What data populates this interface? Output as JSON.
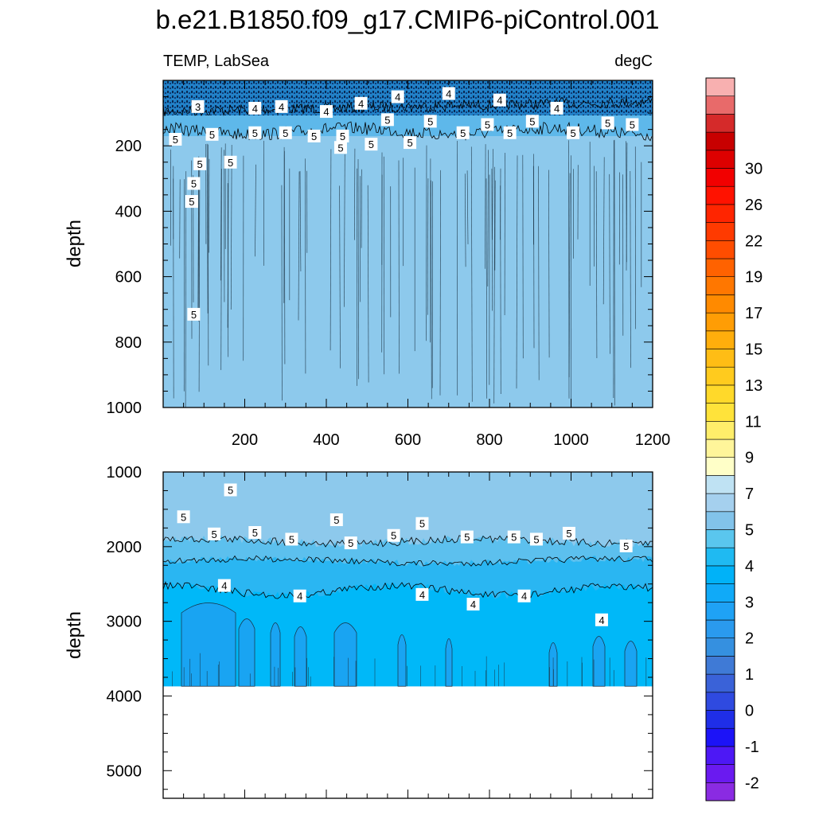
{
  "chart_data": {
    "type": "heatmap",
    "title": "b.e21.B1850.f09_g17.CMIP6-piControl.001",
    "variable_label": "TEMP, LabSea",
    "units_label": "degC",
    "panels": [
      {
        "name": "upper",
        "xlim": [
          0,
          1200
        ],
        "ylim": [
          1000,
          0
        ],
        "ylabel": "depth",
        "xticks": [
          200,
          400,
          600,
          800,
          1000,
          1200
        ],
        "yticks": [
          200,
          400,
          600,
          800,
          1000
        ],
        "contour_labels": [
          {
            "x": 85,
            "y": 80,
            "text": "3"
          },
          {
            "x": 225,
            "y": 85,
            "text": "4"
          },
          {
            "x": 290,
            "y": 80,
            "text": "4"
          },
          {
            "x": 400,
            "y": 95,
            "text": "4"
          },
          {
            "x": 485,
            "y": 70,
            "text": "4"
          },
          {
            "x": 575,
            "y": 50,
            "text": "4"
          },
          {
            "x": 700,
            "y": 40,
            "text": "4"
          },
          {
            "x": 825,
            "y": 60,
            "text": "4"
          },
          {
            "x": 965,
            "y": 85,
            "text": "4"
          },
          {
            "x": 30,
            "y": 180,
            "text": "5"
          },
          {
            "x": 120,
            "y": 165,
            "text": "5"
          },
          {
            "x": 225,
            "y": 160,
            "text": "5"
          },
          {
            "x": 300,
            "y": 160,
            "text": "5"
          },
          {
            "x": 370,
            "y": 170,
            "text": "5"
          },
          {
            "x": 440,
            "y": 170,
            "text": "5"
          },
          {
            "x": 435,
            "y": 205,
            "text": "5"
          },
          {
            "x": 510,
            "y": 195,
            "text": "5"
          },
          {
            "x": 550,
            "y": 120,
            "text": "5"
          },
          {
            "x": 605,
            "y": 190,
            "text": "5"
          },
          {
            "x": 655,
            "y": 125,
            "text": "5"
          },
          {
            "x": 735,
            "y": 160,
            "text": "5"
          },
          {
            "x": 795,
            "y": 135,
            "text": "5"
          },
          {
            "x": 850,
            "y": 160,
            "text": "5"
          },
          {
            "x": 905,
            "y": 125,
            "text": "5"
          },
          {
            "x": 1005,
            "y": 160,
            "text": "5"
          },
          {
            "x": 1090,
            "y": 130,
            "text": "5"
          },
          {
            "x": 1150,
            "y": 135,
            "text": "5"
          },
          {
            "x": 90,
            "y": 255,
            "text": "5"
          },
          {
            "x": 165,
            "y": 250,
            "text": "5"
          },
          {
            "x": 75,
            "y": 315,
            "text": "5"
          },
          {
            "x": 70,
            "y": 370,
            "text": "5"
          },
          {
            "x": 75,
            "y": 715,
            "text": "5"
          }
        ]
      },
      {
        "name": "lower",
        "xlim": [
          0,
          1200
        ],
        "ylim": [
          5370,
          1000
        ],
        "ylabel": "depth",
        "data_bottom": 3870,
        "yticks": [
          1000,
          2000,
          3000,
          4000,
          5000
        ],
        "contour_labels": [
          {
            "x": 165,
            "y": 1240,
            "text": "5"
          },
          {
            "x": 50,
            "y": 1600,
            "text": "5"
          },
          {
            "x": 125,
            "y": 1830,
            "text": "5"
          },
          {
            "x": 225,
            "y": 1810,
            "text": "5"
          },
          {
            "x": 315,
            "y": 1900,
            "text": "5"
          },
          {
            "x": 425,
            "y": 1640,
            "text": "5"
          },
          {
            "x": 460,
            "y": 1950,
            "text": "5"
          },
          {
            "x": 565,
            "y": 1850,
            "text": "5"
          },
          {
            "x": 635,
            "y": 1690,
            "text": "5"
          },
          {
            "x": 745,
            "y": 1870,
            "text": "5"
          },
          {
            "x": 860,
            "y": 1870,
            "text": "5"
          },
          {
            "x": 915,
            "y": 1900,
            "text": "5"
          },
          {
            "x": 995,
            "y": 1820,
            "text": "5"
          },
          {
            "x": 1135,
            "y": 1990,
            "text": "5"
          },
          {
            "x": 150,
            "y": 2520,
            "text": "4"
          },
          {
            "x": 335,
            "y": 2660,
            "text": "4"
          },
          {
            "x": 635,
            "y": 2640,
            "text": "4"
          },
          {
            "x": 760,
            "y": 2770,
            "text": "4"
          },
          {
            "x": 885,
            "y": 2660,
            "text": "4"
          },
          {
            "x": 1075,
            "y": 2980,
            "text": "4"
          }
        ]
      }
    ],
    "colorbar": {
      "labels": [
        "-2",
        "-1",
        "0",
        "1",
        "2",
        "3",
        "4",
        "5",
        "7",
        "9",
        "11",
        "13",
        "15",
        "17",
        "19",
        "22",
        "26",
        "30"
      ],
      "colors": [
        "#8a2be2",
        "#6a1af0",
        "#4d18f5",
        "#1c13f7",
        "#1f2ee8",
        "#2f4ae0",
        "#3a62d8",
        "#3f7ad6",
        "#3590e0",
        "#2a9aee",
        "#1fa2f5",
        "#10aaf8",
        "#00b2f8",
        "#1fbaf2",
        "#5ac6ee",
        "#82c3ea",
        "#a5d0ee",
        "#bfe2f3",
        "#ffffc8",
        "#fff59a",
        "#ffee6a",
        "#ffe33a",
        "#ffd92a",
        "#ffcb1e",
        "#ffbd15",
        "#ffae0c",
        "#ff9d05",
        "#ff8a00",
        "#ff7700",
        "#ff6200",
        "#ff4d00",
        "#ff3a00",
        "#ff2500",
        "#ff1200",
        "#f20000",
        "#dd0000",
        "#c80000",
        "#d52a2a",
        "#e86a6a",
        "#f8b0b0"
      ]
    }
  }
}
